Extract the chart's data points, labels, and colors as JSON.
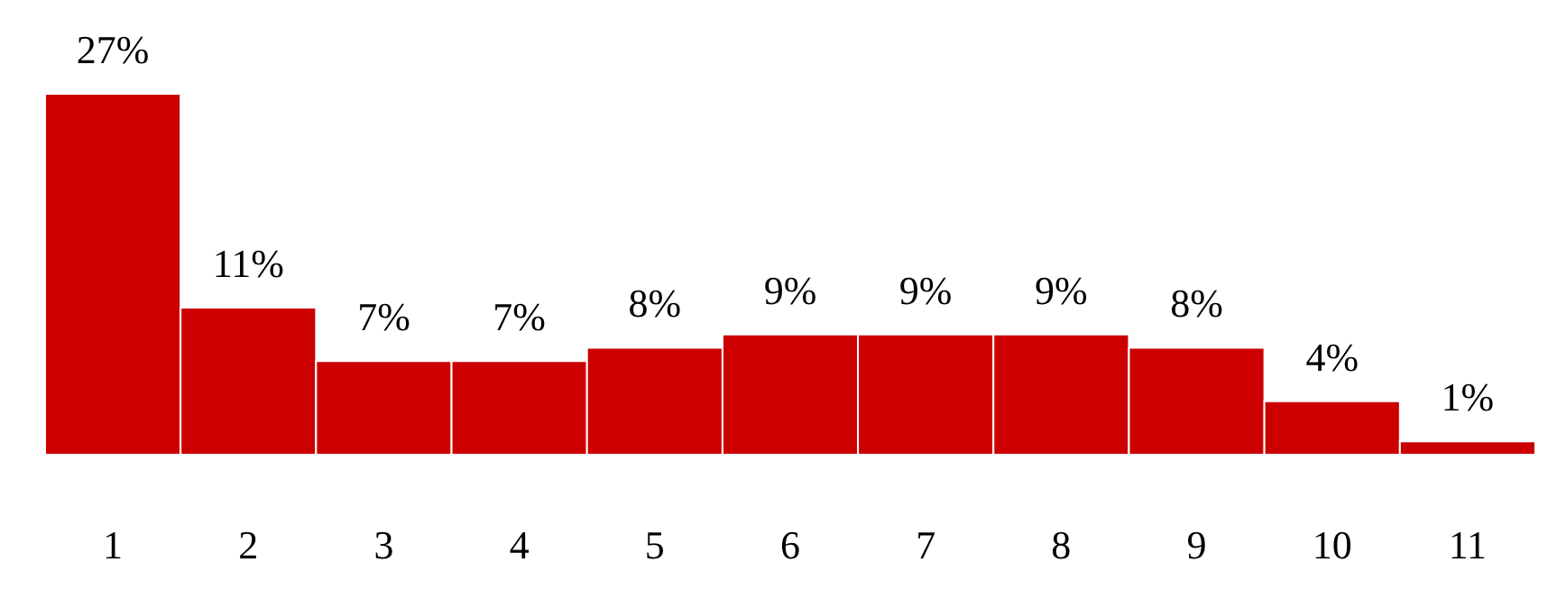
{
  "chart_data": {
    "type": "bar",
    "categories": [
      "1",
      "2",
      "3",
      "4",
      "5",
      "6",
      "7",
      "8",
      "9",
      "10",
      "11"
    ],
    "values": [
      27,
      11,
      7,
      7,
      8,
      9,
      9,
      9,
      8,
      4,
      1
    ],
    "value_labels": [
      "27%",
      "11%",
      "7%",
      "7%",
      "8%",
      "9%",
      "9%",
      "9%",
      "8%",
      "4%",
      "1%"
    ],
    "color": "#cc0000"
  }
}
